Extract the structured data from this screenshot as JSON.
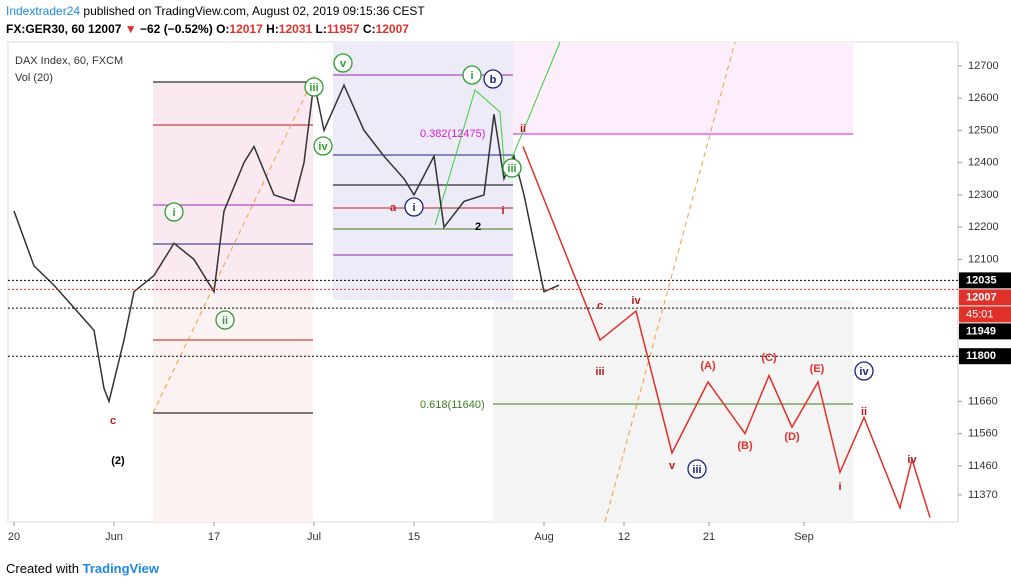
{
  "header": {
    "author": "Indextrader24",
    "published": "published on TradingView.com, August 02, 2019 09:15:36 CEST",
    "symbol": "FX:GER30, 60",
    "last": "12007",
    "change": "−62 (−0.52%)",
    "o_label": "O:",
    "o": "12017",
    "h_label": "H:",
    "h": "12031",
    "l_label": "L:",
    "l": "11957",
    "c_label": "C:",
    "c": "12007"
  },
  "chart_data": {
    "type": "line",
    "title": "DAX Index, 60, FXCM",
    "subtitle": "Vol (20)",
    "xlim": [
      -0.6,
      94.4
    ],
    "ylim": [
      11286,
      12774
    ],
    "xticks": [
      {
        "value": 0,
        "label": "20"
      },
      {
        "value": 10,
        "label": "Jun"
      },
      {
        "value": 20,
        "label": "17"
      },
      {
        "value": 30,
        "label": "Jul"
      },
      {
        "value": 40,
        "label": "15"
      },
      {
        "value": 53,
        "label": "Aug"
      },
      {
        "value": 61,
        "label": "12"
      },
      {
        "value": 69.5,
        "label": "21"
      },
      {
        "value": 79,
        "label": "Sep"
      }
    ],
    "yticks": [
      12700,
      12600,
      12500,
      12400,
      12300,
      12200,
      12100,
      11660,
      11560,
      11460,
      11370
    ],
    "series": [
      {
        "color": "#333333",
        "x": [
          0,
          2,
          4,
          6,
          8,
          9,
          9.5,
          11,
          12,
          14,
          16,
          18,
          20,
          21,
          23,
          24,
          26,
          28,
          29,
          30,
          31,
          33,
          35,
          37,
          39,
          40,
          42,
          43,
          45,
          47,
          48,
          49,
          50,
          51,
          52,
          53,
          54.5
        ],
        "values": [
          12250,
          12080,
          12020,
          11950,
          11880,
          11700,
          11660,
          11850,
          12000,
          12050,
          12150,
          12100,
          12000,
          12250,
          12400,
          12450,
          12300,
          12280,
          12400,
          12650,
          12500,
          12640,
          12500,
          12420,
          12350,
          12300,
          12420,
          12200,
          12280,
          12300,
          12550,
          12350,
          12420,
          12300,
          12150,
          12000,
          12020
        ]
      },
      {
        "color": "#e0302a",
        "x": [
          50.9,
          58.6,
          62.2,
          65.8,
          69.4,
          73.1,
          75.5,
          77.8,
          80.4,
          82.6,
          85,
          88.6,
          89.8,
          91.6
        ],
        "values": [
          12450,
          11850,
          11940,
          11500,
          11720,
          11560,
          11740,
          11580,
          11720,
          11440,
          11610,
          11330,
          11480,
          11300
        ]
      }
    ],
    "levels": [
      {
        "value": 12035,
        "color": "#000000"
      },
      {
        "value": 12007,
        "color": "#e0302a"
      },
      {
        "value": 11949,
        "color": "#000000"
      },
      {
        "value": 11800,
        "color": "#000000"
      }
    ],
    "countdown": "45:01",
    "fib_labels": [
      {
        "text": "0.382(12475)",
        "color": "#d81bd8"
      },
      {
        "text": "0.618(11640)",
        "color": "#3a7d1c"
      }
    ],
    "annotations": [
      {
        "text": "c",
        "color": "#b71c1c",
        "circled": false
      },
      {
        "text": "(2)",
        "color": "#000000",
        "circled": false
      },
      {
        "text": "i",
        "color": "#2e9d2e",
        "circled": true
      },
      {
        "text": "ii",
        "color": "#2e9d2e",
        "circled": true
      },
      {
        "text": "iii",
        "color": "#2e9d2e",
        "circled": true
      },
      {
        "text": "iv",
        "color": "#2e9d2e",
        "circled": true
      },
      {
        "text": "v",
        "color": "#2e9d2e",
        "circled": true
      },
      {
        "text": "a",
        "color": "#b71c1c",
        "circled": false
      },
      {
        "text": "i",
        "color": "#1a237e",
        "circled": true
      },
      {
        "text": "2",
        "color": "#000000",
        "circled": false
      },
      {
        "text": "i",
        "color": "#2e9d2e",
        "circled": true
      },
      {
        "text": "b",
        "color": "#1a237e",
        "circled": true
      },
      {
        "text": "i",
        "color": "#b71c1c",
        "circled": false
      },
      {
        "text": "ii",
        "color": "#b71c1c",
        "circled": false
      },
      {
        "text": "iii",
        "color": "#2e9d2e",
        "circled": true
      },
      {
        "text": "c",
        "color": "#b71c1c",
        "circled": false
      },
      {
        "text": "iv",
        "color": "#b71c1c",
        "circled": false
      },
      {
        "text": "iii",
        "color": "#b71c1c",
        "circled": false
      },
      {
        "text": "v",
        "color": "#b71c1c",
        "circled": false
      },
      {
        "text": "iii",
        "color": "#1a237e",
        "circled": true
      },
      {
        "text": "(A)",
        "color": "#e0302a",
        "circled": false
      },
      {
        "text": "(B)",
        "color": "#e0302a",
        "circled": false
      },
      {
        "text": "(C)",
        "color": "#e0302a",
        "circled": false
      },
      {
        "text": "(D)",
        "color": "#e0302a",
        "circled": false
      },
      {
        "text": "(E)",
        "color": "#e0302a",
        "circled": false
      },
      {
        "text": "iv",
        "color": "#1a237e",
        "circled": true
      },
      {
        "text": "ii",
        "color": "#b71c1c",
        "circled": false
      },
      {
        "text": "i",
        "color": "#b71c1c",
        "circled": false
      },
      {
        "text": "iv",
        "color": "#b71c1c",
        "circled": false
      }
    ]
  },
  "footer": {
    "created": "Created with",
    "brand": "TradingView"
  }
}
